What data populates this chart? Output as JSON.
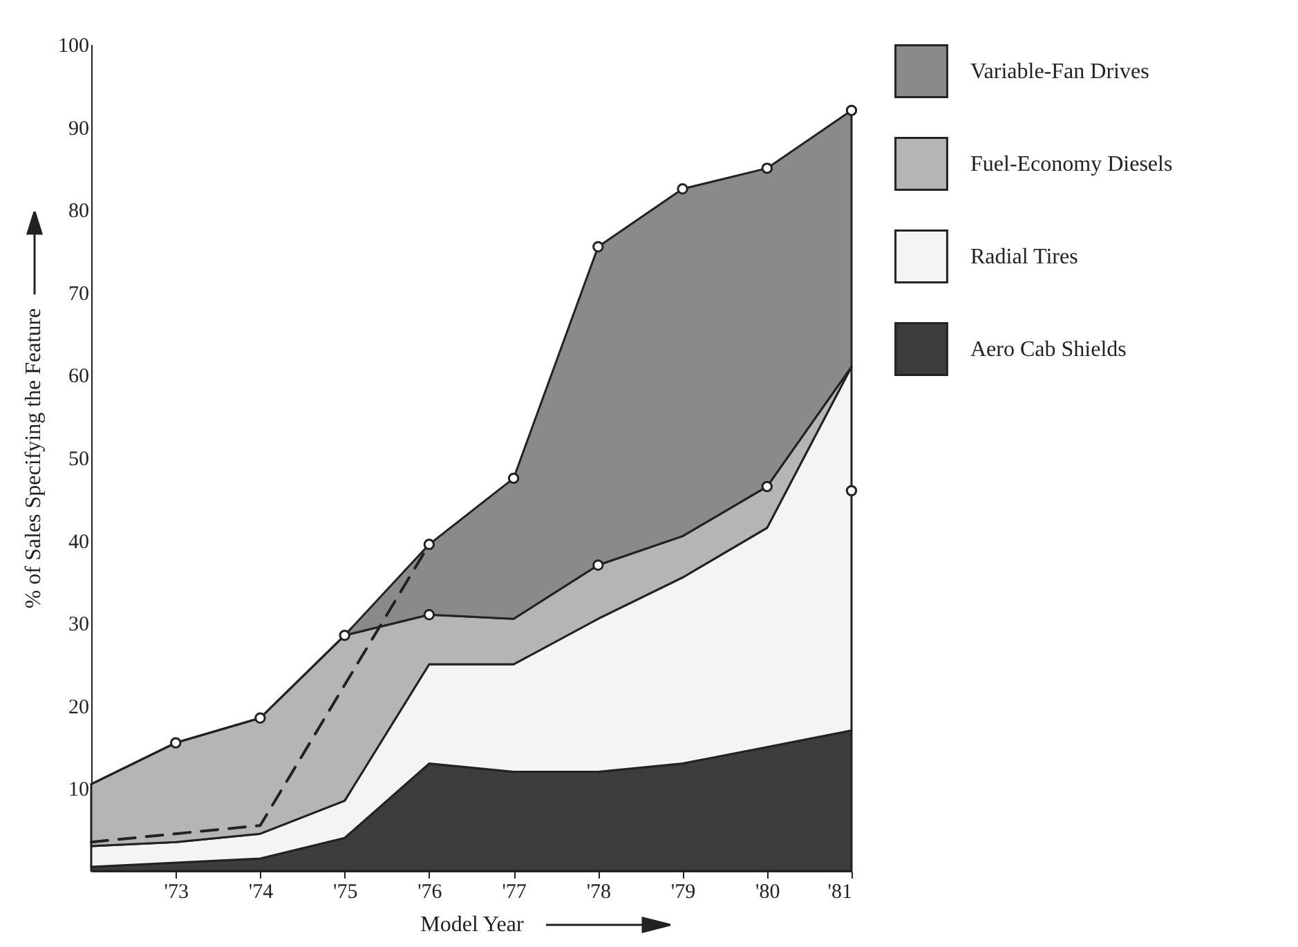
{
  "chart_data": {
    "type": "area",
    "stacked": true,
    "xlabel": "Model Year",
    "ylabel": "% of Sales Specifying the Feature",
    "x": [
      1972,
      1973,
      1974,
      1975,
      1976,
      1977,
      1978,
      1979,
      1980,
      1981
    ],
    "xlim": [
      1972,
      1981
    ],
    "xticks": [
      {
        "value": 1973,
        "label": "'73"
      },
      {
        "value": 1974,
        "label": "'74"
      },
      {
        "value": 1975,
        "label": "'75"
      },
      {
        "value": 1976,
        "label": "'76"
      },
      {
        "value": 1977,
        "label": "'77"
      },
      {
        "value": 1978,
        "label": "'78"
      },
      {
        "value": 1979,
        "label": "'79"
      },
      {
        "value": 1980,
        "label": "'80"
      },
      {
        "value": 1981,
        "label": "'81"
      }
    ],
    "ylim": [
      0,
      100
    ],
    "yticks": [
      10,
      20,
      30,
      40,
      50,
      60,
      70,
      80,
      90,
      100
    ],
    "legend": "right",
    "grid": false,
    "series": [
      {
        "name": "Aero Cab Shields",
        "color": "#3c3c3c",
        "values": [
          0.5,
          1,
          1.5,
          4,
          13,
          12,
          12,
          13,
          15,
          17
        ]
      },
      {
        "name": "Radial Tires",
        "color": "#f4f4f4",
        "values": [
          2.5,
          2.5,
          3,
          4.5,
          12,
          13,
          18.5,
          22.5,
          26.5,
          44
        ]
      },
      {
        "name": "Fuel-Economy Diesels",
        "color": "#b5b5b5",
        "values": [
          7.5,
          12,
          14,
          20,
          6,
          5.5,
          6.5,
          5,
          5,
          0
        ]
      },
      {
        "name": "Variable-Fan Drives",
        "color": "#8a8a8a",
        "values": [
          0,
          0,
          0,
          0,
          8.5,
          17,
          38.5,
          42,
          38.5,
          31
        ]
      },
      {
        "type": "line",
        "line_style": "dashed",
        "color": "#222222",
        "x": [
          1972,
          1974,
          1976
        ],
        "values": [
          3.5,
          5.5,
          39.5
        ]
      },
      {
        "type": "scatter",
        "marker": "circle",
        "color": "#ffffff",
        "x": [
          1973,
          1974,
          1975,
          1976,
          1976,
          1977,
          1978,
          1978,
          1979,
          1980,
          1980,
          1981,
          1981
        ],
        "values": [
          15.5,
          18.5,
          28.5,
          31,
          39.5,
          47.5,
          75.5,
          37,
          82.5,
          85,
          46.5,
          92,
          46
        ]
      }
    ]
  }
}
